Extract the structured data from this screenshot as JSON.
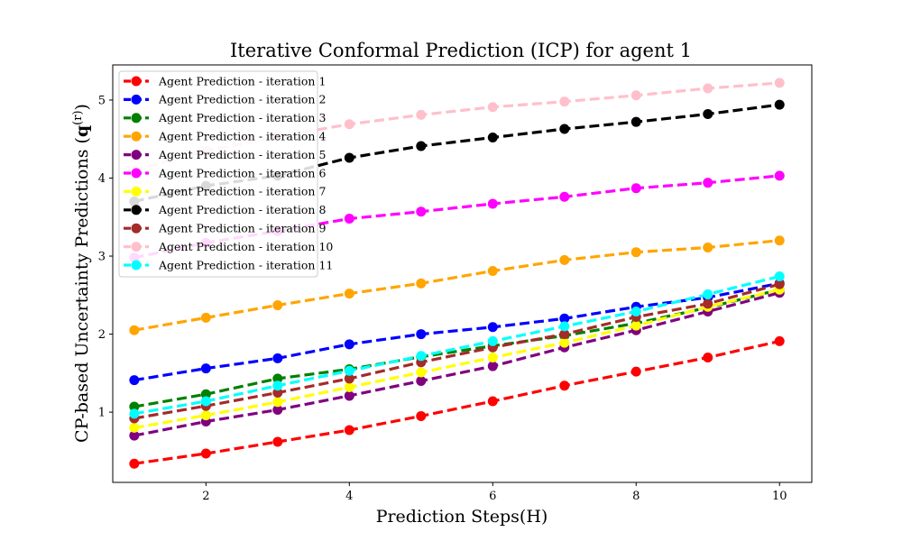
{
  "chart_data": {
    "type": "line",
    "title": "Iterative Conformal Prediction (ICP) for agent 1",
    "xlabel": "Prediction Steps(H)",
    "ylabel": "CP-based Uncertainty Predictions (q(r))",
    "xlim": [
      0.7,
      10.45
    ],
    "ylim": [
      0.1,
      5.45
    ],
    "xticks": [
      2,
      4,
      6,
      8,
      10
    ],
    "yticks": [
      1,
      2,
      3,
      4,
      5
    ],
    "grid": false,
    "legend_position": "top-left",
    "x": [
      1,
      2,
      3,
      4,
      5,
      6,
      7,
      8,
      9,
      10
    ],
    "series": [
      {
        "name": "Agent Prediction - iteration 1",
        "color": "#ff0000",
        "values": [
          0.34,
          0.47,
          0.62,
          0.77,
          0.95,
          1.14,
          1.34,
          1.52,
          1.7,
          1.91
        ]
      },
      {
        "name": "Agent Prediction - iteration 2",
        "color": "#0000ff",
        "values": [
          1.41,
          1.56,
          1.69,
          1.87,
          2.0,
          2.09,
          2.2,
          2.35,
          2.47,
          2.65
        ]
      },
      {
        "name": "Agent Prediction - iteration 3",
        "color": "#008000",
        "values": [
          1.07,
          1.23,
          1.43,
          1.55,
          1.71,
          1.85,
          1.98,
          2.14,
          2.34,
          2.57
        ]
      },
      {
        "name": "Agent Prediction - iteration 4",
        "color": "#ffa500",
        "values": [
          2.05,
          2.21,
          2.37,
          2.52,
          2.65,
          2.81,
          2.95,
          3.05,
          3.11,
          3.2
        ]
      },
      {
        "name": "Agent Prediction - iteration 5",
        "color": "#800080",
        "values": [
          0.7,
          0.88,
          1.03,
          1.21,
          1.4,
          1.59,
          1.83,
          2.05,
          2.29,
          2.53
        ]
      },
      {
        "name": "Agent Prediction - iteration 6",
        "color": "#ff00ff",
        "values": [
          2.98,
          3.17,
          3.32,
          3.48,
          3.57,
          3.67,
          3.76,
          3.87,
          3.94,
          4.03
        ]
      },
      {
        "name": "Agent Prediction - iteration 7",
        "color": "#ffff00",
        "values": [
          0.8,
          0.96,
          1.13,
          1.32,
          1.51,
          1.7,
          1.89,
          2.11,
          2.35,
          2.57
        ]
      },
      {
        "name": "Agent Prediction - iteration 8",
        "color": "#000000",
        "values": [
          3.7,
          3.9,
          4.03,
          4.26,
          4.41,
          4.52,
          4.63,
          4.72,
          4.82,
          4.94
        ]
      },
      {
        "name": "Agent Prediction - iteration 9",
        "color": "#a52a2a",
        "values": [
          0.92,
          1.08,
          1.25,
          1.43,
          1.64,
          1.83,
          2.0,
          2.22,
          2.39,
          2.64
        ]
      },
      {
        "name": "Agent Prediction - iteration 10",
        "color": "#ffc0cb",
        "values": [
          4.1,
          4.35,
          4.53,
          4.69,
          4.81,
          4.91,
          4.98,
          5.06,
          5.15,
          5.22
        ]
      },
      {
        "name": "Agent Prediction - iteration 11",
        "color": "#00ffff",
        "values": [
          0.98,
          1.14,
          1.34,
          1.53,
          1.72,
          1.91,
          2.1,
          2.29,
          2.51,
          2.74
        ]
      }
    ]
  }
}
